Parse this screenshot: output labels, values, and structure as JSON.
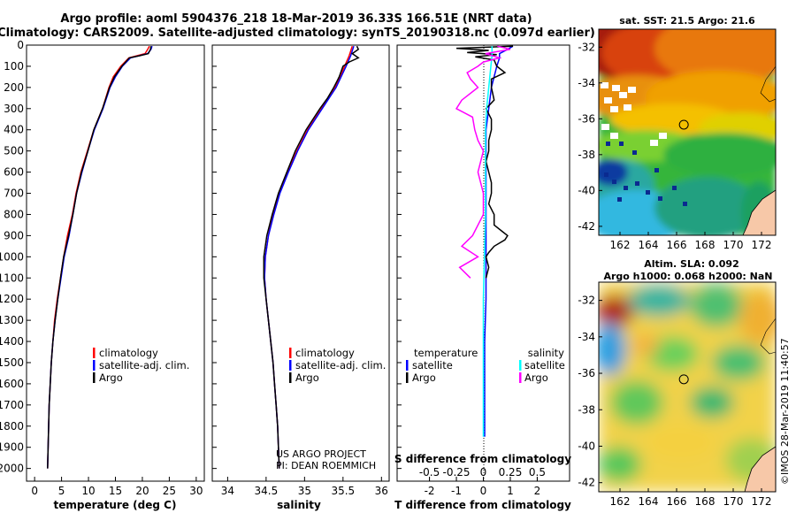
{
  "title_line1": "Argo profile: aoml 5904376_218 18-Mar-2019 36.33S 166.51E (NRT data)",
  "title_line2": "Climatology: CARS2009. Satellite-adjusted climatology: synTS_20190318.nc (0.097d earlier)",
  "colors": {
    "climatology": "#ff0000",
    "satellite": "#0000ff",
    "argo": "#000000",
    "salinity_satellite": "#00ffff",
    "salinity_argo": "#ff00ff"
  },
  "chart_data": [
    {
      "type": "line",
      "name": "temperature",
      "xlabel": "temperature (deg C)",
      "xlim": [
        -1.5,
        31.5
      ],
      "xticks": [
        0,
        5,
        10,
        15,
        20,
        25,
        30
      ],
      "ylim": [
        2060,
        0
      ],
      "yticks": [
        0,
        100,
        200,
        300,
        400,
        500,
        600,
        700,
        800,
        900,
        1000,
        1100,
        1200,
        1300,
        1400,
        1500,
        1600,
        1700,
        1800,
        1900,
        2000
      ],
      "legend": [
        "climatology",
        "satellite-adj. clim.",
        "Argo"
      ],
      "series": [
        {
          "name": "climatology",
          "depth": [
            5,
            20,
            40,
            60,
            100,
            150,
            200,
            300,
            400,
            500,
            600,
            700,
            800,
            900,
            1000,
            1100,
            1200,
            1300,
            1400,
            1500,
            1600,
            1700,
            1800,
            1900,
            2000
          ],
          "values": [
            21.3,
            21.0,
            20.5,
            17.5,
            16.0,
            14.6,
            13.8,
            12.6,
            11.0,
            9.8,
            8.6,
            7.7,
            7.0,
            6.1,
            5.4,
            4.8,
            4.2,
            3.7,
            3.4,
            3.1,
            2.9,
            2.7,
            2.6,
            2.5,
            2.4
          ]
        },
        {
          "name": "satellite-adj. clim.",
          "depth": [
            5,
            20,
            40,
            60,
            100,
            150,
            200,
            300,
            400,
            500,
            600,
            700,
            800,
            900,
            1000,
            1100,
            1200,
            1300,
            1400,
            1500,
            1600,
            1700,
            1800,
            1900,
            2000
          ],
          "values": [
            21.8,
            21.6,
            21.0,
            17.8,
            16.3,
            15.0,
            14.0,
            12.7,
            11.1,
            9.9,
            8.8,
            7.8,
            7.1,
            6.4,
            5.5,
            4.9,
            4.3,
            3.8,
            3.4,
            3.1,
            2.9,
            2.7,
            2.6,
            2.5,
            2.4
          ]
        },
        {
          "name": "Argo",
          "depth": [
            5,
            20,
            40,
            50,
            60,
            100,
            150,
            200,
            300,
            400,
            500,
            600,
            700,
            800,
            900,
            1000,
            1100,
            1200,
            1300,
            1400,
            1500,
            1600,
            1700,
            1800,
            1900,
            2000
          ],
          "values": [
            21.6,
            21.5,
            21.1,
            19.5,
            17.6,
            16.2,
            14.8,
            13.9,
            12.6,
            11.0,
            9.9,
            8.7,
            7.8,
            7.1,
            6.3,
            5.4,
            4.8,
            4.3,
            3.8,
            3.4,
            3.1,
            2.9,
            2.7,
            2.6,
            2.5,
            2.4
          ]
        }
      ]
    },
    {
      "type": "line",
      "name": "salinity",
      "xlabel": "salinity",
      "xlim": [
        33.8,
        36.1
      ],
      "xticks": [
        34,
        34.5,
        35,
        35.5,
        36
      ],
      "ylim": [
        2060,
        0
      ],
      "legend": [
        "climatology",
        "satellite-adj. clim.",
        "Argo"
      ],
      "credit": [
        "US ARGO PROJECT",
        "PI: DEAN ROEMMICH"
      ],
      "series": [
        {
          "name": "climatology",
          "depth": [
            5,
            50,
            100,
            200,
            300,
            400,
            500,
            600,
            700,
            800,
            900,
            1000,
            1100,
            1200,
            1300,
            1400,
            1500,
            1600,
            1700,
            1800,
            1900,
            2000
          ],
          "values": [
            35.62,
            35.58,
            35.52,
            35.4,
            35.22,
            35.04,
            34.9,
            34.78,
            34.67,
            34.59,
            34.53,
            34.49,
            34.48,
            34.5,
            34.53,
            34.56,
            34.59,
            34.61,
            34.63,
            34.65,
            34.66,
            34.67
          ]
        },
        {
          "name": "satellite-adj. clim.",
          "depth": [
            5,
            50,
            100,
            200,
            300,
            400,
            500,
            600,
            700,
            800,
            900,
            1000,
            1100,
            1200,
            1300,
            1400,
            1500,
            1600,
            1700,
            1800,
            1900,
            2000
          ],
          "values": [
            35.64,
            35.6,
            35.54,
            35.41,
            35.23,
            35.05,
            34.91,
            34.79,
            34.68,
            34.6,
            34.53,
            34.49,
            34.48,
            34.5,
            34.53,
            34.56,
            34.59,
            34.61,
            34.63,
            34.65,
            34.66,
            34.67
          ]
        },
        {
          "name": "Argo",
          "depth": [
            5,
            20,
            40,
            60,
            80,
            100,
            150,
            200,
            250,
            300,
            400,
            500,
            600,
            700,
            800,
            900,
            1000,
            1100,
            1200,
            1300,
            1400,
            1500,
            1600,
            1700,
            1800,
            1900,
            2000
          ],
          "values": [
            35.68,
            35.7,
            35.62,
            35.7,
            35.58,
            35.5,
            35.45,
            35.38,
            35.3,
            35.2,
            35.02,
            34.88,
            34.77,
            34.66,
            34.58,
            34.51,
            34.47,
            34.47,
            34.5,
            34.53,
            34.56,
            34.59,
            34.61,
            34.63,
            34.65,
            34.66,
            34.67
          ]
        }
      ]
    },
    {
      "type": "line",
      "name": "difference",
      "xlabel": "T difference from climatology",
      "xlabel_top": "S difference from climatology",
      "xlim": [
        -3.2,
        3.2
      ],
      "xticks": [
        -2,
        -1,
        0,
        1,
        2
      ],
      "xticks_top_labels": [
        "-0.5",
        "-0.25",
        "0",
        "0.25",
        "0.5"
      ],
      "ylim": [
        2060,
        0
      ],
      "legend_temperature": {
        "heading": "temperature",
        "items": [
          "satellite",
          "Argo"
        ]
      },
      "legend_salinity": {
        "heading": "salinity",
        "items": [
          "satellite",
          "Argo"
        ]
      },
      "series": [
        {
          "name": "temperature satellite",
          "depth": [
            5,
            20,
            40,
            60,
            100,
            200,
            300,
            400,
            600,
            800,
            1000,
            1200,
            1400,
            1600,
            1800,
            1850
          ],
          "values": [
            1.1,
            0.9,
            0.6,
            0.6,
            0.5,
            0.3,
            0.2,
            0.1,
            0.1,
            0.1,
            0.1,
            0.1,
            0.05,
            0.05,
            0.05,
            0.05
          ]
        },
        {
          "name": "temperature Argo",
          "depth": [
            5,
            15,
            25,
            35,
            45,
            55,
            70,
            100,
            130,
            160,
            200,
            260,
            300,
            350,
            400,
            450,
            500,
            550,
            600,
            650,
            700,
            750,
            800,
            850,
            880,
            900,
            920,
            950,
            980,
            1000,
            1050,
            1100
          ],
          "values": [
            1.1,
            -1.0,
            0.2,
            -0.6,
            0.5,
            -0.3,
            0.4,
            0.5,
            0.8,
            0.3,
            0.3,
            0.4,
            0.1,
            0.3,
            0.3,
            0.2,
            0.2,
            0.1,
            0.2,
            0.3,
            0.3,
            0.2,
            0.4,
            0.4,
            0.7,
            0.9,
            0.8,
            0.4,
            0.2,
            0.1,
            0.2,
            0.1
          ]
        },
        {
          "name": "salinity satellite",
          "depth": [
            5,
            50,
            100,
            200,
            300,
            400,
            500,
            600,
            800,
            1000,
            1200,
            1400,
            1600,
            1800,
            1850
          ],
          "values": [
            0.08,
            0.08,
            0.07,
            0.05,
            0.03,
            0.02,
            0.02,
            0.02,
            0.02,
            0.01,
            0.0,
            0.0,
            0.0,
            0.0,
            0.0
          ]
        },
        {
          "name": "salinity Argo",
          "depth": [
            5,
            20,
            40,
            60,
            80,
            100,
            130,
            160,
            200,
            260,
            300,
            340,
            400,
            450,
            500,
            600,
            700,
            800,
            900,
            950,
            1000,
            1050,
            1100
          ],
          "values": [
            0.13,
            0.25,
            0.02,
            0.15,
            0.0,
            -0.05,
            -0.15,
            -0.12,
            -0.05,
            -0.2,
            -0.25,
            -0.1,
            -0.08,
            -0.05,
            0.0,
            -0.05,
            0.0,
            0.0,
            -0.1,
            -0.2,
            -0.05,
            -0.22,
            -0.12
          ]
        }
      ]
    }
  ],
  "map_sst": {
    "title": "sat. SST: 21.5 Argo: 21.6",
    "lon_ticks": [
      "162",
      "164",
      "166",
      "168",
      "170",
      "172"
    ],
    "lat_ticks": [
      "-32",
      "-34",
      "-36",
      "-38",
      "-40",
      "-42"
    ],
    "float_lon": 166.51,
    "float_lat": -36.33
  },
  "map_sla": {
    "title_line1": "Altim. SLA: 0.092",
    "title_line2": "Argo h1000: 0.068 h2000: NaN",
    "lon_ticks": [
      "162",
      "164",
      "166",
      "168",
      "170",
      "172"
    ],
    "lat_ticks": [
      "-32",
      "-34",
      "-36",
      "-38",
      "-40",
      "-42"
    ],
    "float_lon": 166.51,
    "float_lat": -36.33
  },
  "timestamp": "©IMOS 28-Mar-2019 11:40:57"
}
